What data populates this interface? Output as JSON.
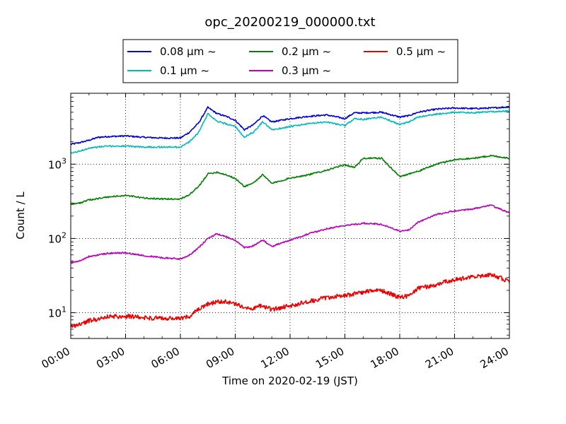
{
  "chart_data": {
    "type": "line",
    "title": "opc_20200219_000000.txt",
    "xlabel": "Time on 2020-02-19 (JST)",
    "ylabel": "Count / L",
    "xscale": "time",
    "yscale": "log",
    "xlim": [
      "2020-02-19 00:00",
      "2020-02-20 00:00"
    ],
    "ylim": [
      4.5,
      9000
    ],
    "x_ticks": [
      "00:00",
      "03:00",
      "06:00",
      "09:00",
      "12:00",
      "15:00",
      "18:00",
      "21:00",
      "24:00"
    ],
    "y_ticks": [
      {
        "base": "10",
        "exp": "1",
        "value": 10
      },
      {
        "base": "10",
        "exp": "2",
        "value": 100
      },
      {
        "base": "10",
        "exp": "3",
        "value": 1000
      }
    ],
    "grid": true,
    "legend": {
      "placement": "top",
      "columns": 3
    },
    "series": [
      {
        "name": "0.08 μm ~",
        "color": "#0000dd",
        "points": [
          [
            "00:00",
            1850
          ],
          [
            "00:30",
            1950
          ],
          [
            "01:00",
            2100
          ],
          [
            "01:30",
            2300
          ],
          [
            "02:00",
            2350
          ],
          [
            "03:00",
            2400
          ],
          [
            "04:00",
            2300
          ],
          [
            "05:00",
            2250
          ],
          [
            "06:00",
            2250
          ],
          [
            "06:30",
            2700
          ],
          [
            "07:00",
            3600
          ],
          [
            "07:30",
            5800
          ],
          [
            "08:00",
            4800
          ],
          [
            "08:30",
            4400
          ],
          [
            "09:00",
            3900
          ],
          [
            "09:30",
            2900
          ],
          [
            "10:00",
            3400
          ],
          [
            "10:30",
            4500
          ],
          [
            "11:00",
            3700
          ],
          [
            "12:00",
            4100
          ],
          [
            "13:00",
            4400
          ],
          [
            "14:00",
            4600
          ],
          [
            "15:00",
            4100
          ],
          [
            "15:30",
            4900
          ],
          [
            "16:00",
            4900
          ],
          [
            "17:00",
            5000
          ],
          [
            "18:00",
            4300
          ],
          [
            "18:30",
            4500
          ],
          [
            "19:00",
            5000
          ],
          [
            "20:00",
            5500
          ],
          [
            "21:00",
            5700
          ],
          [
            "22:00",
            5600
          ],
          [
            "23:00",
            5700
          ],
          [
            "24:00",
            5900
          ]
        ]
      },
      {
        "name": "0.1 μm ~",
        "color": "#00bbbb",
        "points": [
          [
            "00:00",
            1400
          ],
          [
            "00:30",
            1500
          ],
          [
            "01:00",
            1650
          ],
          [
            "02:00",
            1750
          ],
          [
            "03:00",
            1750
          ],
          [
            "04:00",
            1700
          ],
          [
            "05:00",
            1700
          ],
          [
            "06:00",
            1700
          ],
          [
            "06:30",
            2000
          ],
          [
            "07:00",
            2700
          ],
          [
            "07:30",
            4800
          ],
          [
            "08:00",
            3800
          ],
          [
            "08:30",
            3500
          ],
          [
            "09:00",
            3200
          ],
          [
            "09:30",
            2300
          ],
          [
            "10:00",
            2700
          ],
          [
            "10:30",
            3700
          ],
          [
            "11:00",
            2900
          ],
          [
            "12:00",
            3200
          ],
          [
            "13:00",
            3500
          ],
          [
            "14:00",
            3700
          ],
          [
            "15:00",
            3300
          ],
          [
            "15:30",
            4100
          ],
          [
            "16:00",
            4000
          ],
          [
            "17:00",
            4300
          ],
          [
            "18:00",
            3400
          ],
          [
            "18:30",
            3700
          ],
          [
            "19:00",
            4300
          ],
          [
            "20:00",
            4700
          ],
          [
            "21:00",
            5000
          ],
          [
            "22:00",
            4900
          ],
          [
            "23:00",
            5100
          ],
          [
            "24:00",
            5200
          ]
        ]
      },
      {
        "name": "0.2 μm ~",
        "color": "#008000",
        "points": [
          [
            "00:00",
            290
          ],
          [
            "00:30",
            300
          ],
          [
            "01:00",
            330
          ],
          [
            "02:00",
            360
          ],
          [
            "03:00",
            380
          ],
          [
            "04:00",
            350
          ],
          [
            "05:00",
            340
          ],
          [
            "06:00",
            340
          ],
          [
            "06:30",
            390
          ],
          [
            "07:00",
            500
          ],
          [
            "07:30",
            740
          ],
          [
            "08:00",
            780
          ],
          [
            "08:30",
            720
          ],
          [
            "09:00",
            640
          ],
          [
            "09:30",
            500
          ],
          [
            "10:00",
            560
          ],
          [
            "10:30",
            720
          ],
          [
            "11:00",
            550
          ],
          [
            "12:00",
            650
          ],
          [
            "13:00",
            720
          ],
          [
            "14:00",
            830
          ],
          [
            "15:00",
            980
          ],
          [
            "15:30",
            900
          ],
          [
            "16:00",
            1200
          ],
          [
            "17:00",
            1200
          ],
          [
            "18:00",
            680
          ],
          [
            "18:30",
            740
          ],
          [
            "19:00",
            800
          ],
          [
            "20:00",
            1000
          ],
          [
            "21:00",
            1150
          ],
          [
            "22:00",
            1200
          ],
          [
            "23:00",
            1300
          ],
          [
            "24:00",
            1200
          ]
        ]
      },
      {
        "name": "0.3 μm ~",
        "color": "#bb00bb",
        "points": [
          [
            "00:00",
            47
          ],
          [
            "00:30",
            50
          ],
          [
            "01:00",
            57
          ],
          [
            "02:00",
            63
          ],
          [
            "03:00",
            64
          ],
          [
            "04:00",
            59
          ],
          [
            "05:00",
            55
          ],
          [
            "06:00",
            53
          ],
          [
            "06:30",
            60
          ],
          [
            "07:00",
            75
          ],
          [
            "07:30",
            100
          ],
          [
            "08:00",
            115
          ],
          [
            "08:30",
            105
          ],
          [
            "09:00",
            95
          ],
          [
            "09:30",
            75
          ],
          [
            "10:00",
            80
          ],
          [
            "10:30",
            95
          ],
          [
            "11:00",
            78
          ],
          [
            "12:00",
            95
          ],
          [
            "13:00",
            115
          ],
          [
            "14:00",
            135
          ],
          [
            "15:00",
            150
          ],
          [
            "16:00",
            160
          ],
          [
            "17:00",
            155
          ],
          [
            "18:00",
            125
          ],
          [
            "18:30",
            130
          ],
          [
            "19:00",
            165
          ],
          [
            "20:00",
            210
          ],
          [
            "21:00",
            235
          ],
          [
            "22:00",
            250
          ],
          [
            "23:00",
            280
          ],
          [
            "24:00",
            220
          ]
        ]
      },
      {
        "name": "0.5 μm ~",
        "color": "#ee0000",
        "points": [
          [
            "00:00",
            6.5
          ],
          [
            "00:30",
            7
          ],
          [
            "01:00",
            7.8
          ],
          [
            "02:00",
            8.8
          ],
          [
            "03:00",
            9
          ],
          [
            "04:00",
            8.6
          ],
          [
            "05:00",
            8.4
          ],
          [
            "06:00",
            8.3
          ],
          [
            "06:30",
            9
          ],
          [
            "07:00",
            11
          ],
          [
            "07:30",
            13
          ],
          [
            "08:00",
            14
          ],
          [
            "08:30",
            14
          ],
          [
            "09:00",
            13
          ],
          [
            "09:30",
            12
          ],
          [
            "10:00",
            11.5
          ],
          [
            "10:30",
            12.5
          ],
          [
            "11:00",
            11
          ],
          [
            "12:00",
            12.5
          ],
          [
            "13:00",
            14
          ],
          [
            "14:00",
            16
          ],
          [
            "15:00",
            17
          ],
          [
            "16:00",
            19
          ],
          [
            "17:00",
            20
          ],
          [
            "18:00",
            16
          ],
          [
            "18:30",
            17
          ],
          [
            "19:00",
            21
          ],
          [
            "20:00",
            24
          ],
          [
            "21:00",
            28
          ],
          [
            "22:00",
            30
          ],
          [
            "23:00",
            33
          ],
          [
            "24:00",
            26
          ]
        ]
      }
    ]
  }
}
